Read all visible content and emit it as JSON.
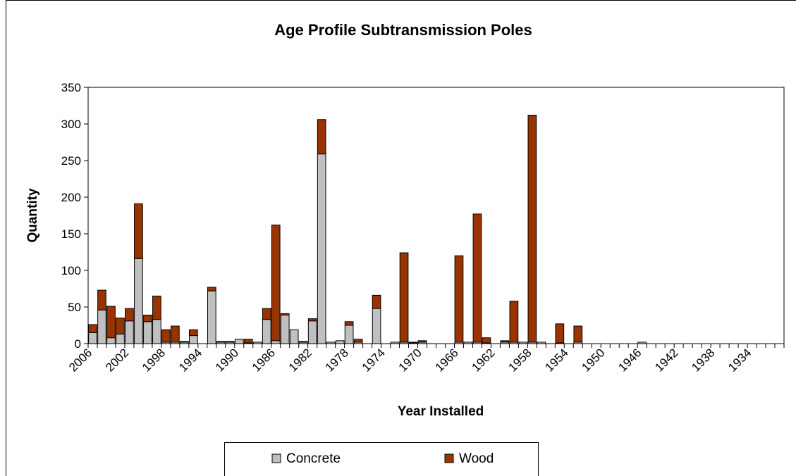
{
  "chart_data": {
    "type": "stacked_bar",
    "title": "Age Profile Subtransmission Poles",
    "x_label": "Year Installed",
    "y_label": "Quantity",
    "categories": [
      "2006",
      null,
      null,
      null,
      "2002",
      null,
      null,
      null,
      "1998",
      null,
      null,
      null,
      "1994",
      null,
      null,
      null,
      "1990",
      null,
      null,
      null,
      "1986",
      null,
      null,
      null,
      "1982",
      null,
      null,
      null,
      "1978",
      null,
      null,
      null,
      "1974",
      null,
      null,
      null,
      "1970",
      null,
      null,
      null,
      "1966",
      null,
      null,
      null,
      "1962",
      null,
      null,
      null,
      "1958",
      null,
      null,
      null,
      "1954",
      null,
      null,
      null,
      "1950",
      null,
      null,
      null,
      "1946",
      null,
      null,
      null,
      "1942",
      null,
      null,
      null,
      "1938",
      null,
      null,
      null,
      "1934",
      null,
      null,
      null
    ],
    "series": [
      {
        "name": "Concrete",
        "color": "#c0c0c0",
        "values": [
          15,
          46,
          8,
          13,
          31,
          116,
          30,
          33,
          2,
          2,
          2,
          11,
          0,
          72,
          2,
          2,
          6,
          1,
          2,
          33,
          4,
          39,
          19,
          2,
          31,
          259,
          2,
          4,
          25,
          2,
          0,
          48,
          0,
          2,
          2,
          1,
          2,
          0,
          0,
          0,
          2,
          2,
          2,
          1,
          0,
          2,
          2,
          2,
          2,
          2,
          0,
          1,
          0,
          2,
          0,
          0,
          0,
          0,
          0,
          0,
          2,
          0,
          0,
          0,
          0,
          0,
          0,
          0,
          0,
          0,
          0,
          0,
          0,
          0,
          0,
          0
        ]
      },
      {
        "name": "Wood",
        "color": "#993300",
        "values": [
          11,
          27,
          43,
          22,
          17,
          75,
          9,
          32,
          17,
          22,
          1,
          8,
          0,
          5,
          1,
          1,
          0,
          5,
          0,
          15,
          158,
          2,
          0,
          1,
          3,
          47,
          0,
          0,
          5,
          4,
          0,
          18,
          0,
          0,
          122,
          1,
          2,
          0,
          0,
          0,
          118,
          0,
          175,
          7,
          0,
          2,
          56,
          0,
          310,
          0,
          0,
          26,
          0,
          22,
          0,
          0,
          0,
          0,
          0,
          0,
          0,
          0,
          0,
          0,
          0,
          0,
          0,
          0,
          0,
          0,
          0,
          0,
          0,
          0,
          0,
          0
        ]
      }
    ],
    "ylim": [
      0,
      350
    ],
    "yticks": [
      0,
      50,
      100,
      150,
      200,
      250,
      300,
      350
    ],
    "legend": "bottom"
  }
}
